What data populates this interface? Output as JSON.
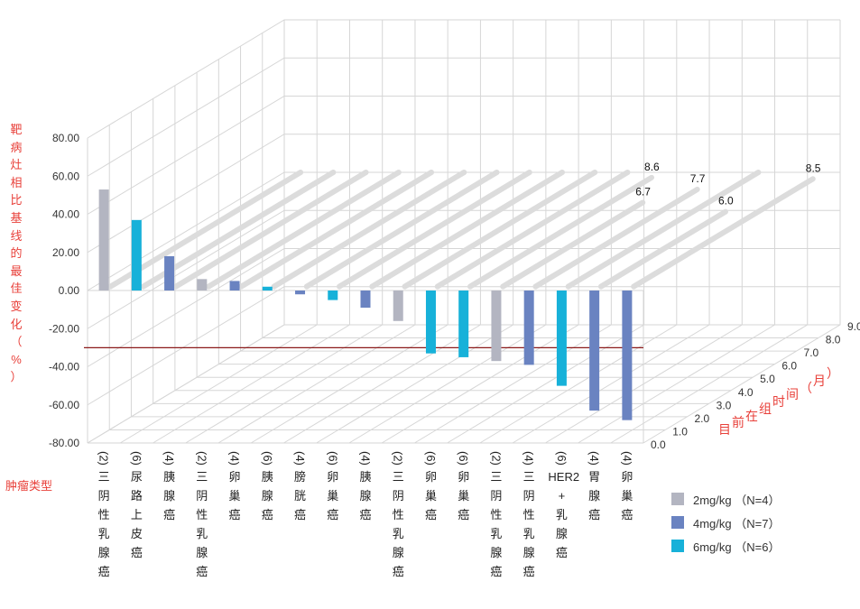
{
  "chart_data": {
    "type": "bar",
    "ylabel": "靶病灶相比基线的最佳变化（%）",
    "xlabel": "肿瘤类型",
    "zlabel": "目前在组时间（月）",
    "ylim": [
      -80,
      80
    ],
    "yticks": [
      "80.00",
      "60.00",
      "40.00",
      "20.00",
      "0.00",
      "-20.00",
      "-40.00",
      "-60.00",
      "-80.00"
    ],
    "zticks": [
      "0.0",
      "1.0",
      "2.0",
      "3.0",
      "4.0",
      "5.0",
      "6.0",
      "7.0",
      "8.0",
      "9.0"
    ],
    "reference_line": -30,
    "colors": {
      "2mg/kg": "#b3b5c1",
      "4mg/kg": "#6a83c1",
      "6mg/kg": "#17b1d9",
      "ref": "#8b1a1a",
      "axis_label": "#e8403a"
    },
    "legend": [
      {
        "name": "2mg/kg",
        "label": "2mg/kg （N=4）"
      },
      {
        "name": "4mg/kg",
        "label": "4mg/kg （N=7）"
      },
      {
        "name": "6mg/kg",
        "label": "6mg/kg （N=6）"
      }
    ],
    "categories": [
      {
        "count": "(2)",
        "label": "三阴性乳腺癌",
        "value": 53,
        "dose": "2mg/kg"
      },
      {
        "count": "(6)",
        "label": "尿路上皮癌",
        "value": 37,
        "dose": "6mg/kg"
      },
      {
        "count": "(4)",
        "label": "胰腺癌",
        "value": 18,
        "dose": "4mg/kg"
      },
      {
        "count": "(2)",
        "label": "三阴性乳腺癌",
        "value": 6,
        "dose": "2mg/kg"
      },
      {
        "count": "(4)",
        "label": "卵巢癌",
        "value": 5,
        "dose": "4mg/kg"
      },
      {
        "count": "(6)",
        "label": "胰腺癌",
        "value": 2,
        "dose": "6mg/kg"
      },
      {
        "count": "(4)",
        "label": "膀胱癌",
        "value": -2,
        "dose": "4mg/kg"
      },
      {
        "count": "(6)",
        "label": "卵巢癌",
        "value": -5,
        "dose": "6mg/kg"
      },
      {
        "count": "(4)",
        "label": "胰腺癌",
        "value": -9,
        "dose": "4mg/kg"
      },
      {
        "count": "(2)",
        "label": "三阴性乳腺癌",
        "value": -16,
        "dose": "2mg/kg"
      },
      {
        "count": "(6)",
        "label": "卵巢癌",
        "value": -33,
        "dose": "6mg/kg"
      },
      {
        "count": "(6)",
        "label": "卵巢癌",
        "value": -35,
        "dose": "6mg/kg"
      },
      {
        "count": "(2)",
        "label": "三阴性乳腺癌",
        "value": -37,
        "dose": "2mg/kg"
      },
      {
        "count": "(4)",
        "label": "三阴性乳腺癌",
        "value": -39,
        "dose": "4mg/kg"
      },
      {
        "count": "(6)",
        "label": "HER2+乳腺癌",
        "value": -50,
        "dose": "6mg/kg"
      },
      {
        "count": "(4)",
        "label": "胃腺癌",
        "value": -63,
        "dose": "4mg/kg"
      },
      {
        "count": "(4)",
        "label": "卵巢癌",
        "value": -68,
        "dose": "4mg/kg"
      }
    ],
    "time_on_study": [
      {
        "category_index": 11,
        "months": 8.6,
        "label": "8.6"
      },
      {
        "category_index": 12,
        "months": 6.7,
        "label": "6.7"
      },
      {
        "category_index": 13,
        "months": 7.7,
        "label": "7.7"
      },
      {
        "category_index": 15,
        "months": 6.0,
        "label": "6.0"
      },
      {
        "category_index": 16,
        "months": 8.5,
        "label": "8.5"
      }
    ]
  }
}
